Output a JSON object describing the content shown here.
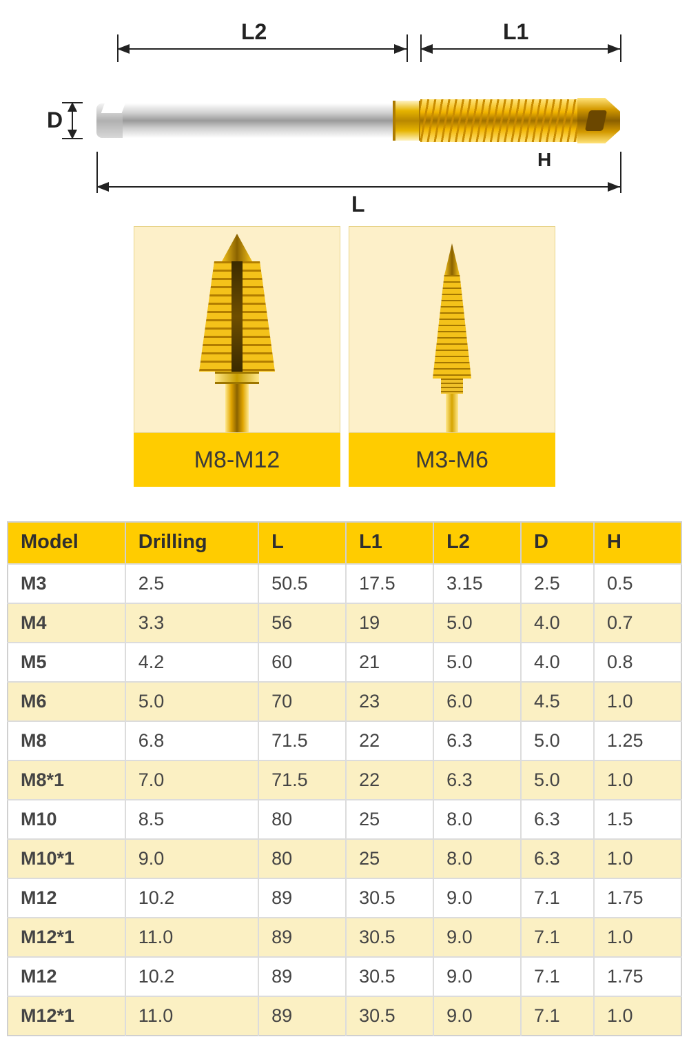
{
  "diagram": {
    "labels": {
      "L": "L",
      "L1": "L1",
      "L2": "L2",
      "D": "D",
      "H": "H"
    },
    "style": {
      "line_color": "#222222",
      "label_fontsize": 32,
      "shank_gradient": [
        "#fefefe",
        "#cfcfcf",
        "#9a9a9a",
        "#cfcfcf",
        "#fefefe"
      ],
      "coating_gold": [
        "#ffe37a",
        "#f2b500",
        "#a06f00"
      ]
    }
  },
  "photos": {
    "background_color": "#fdf0c9",
    "label_bg": "#ffcc00",
    "label_fontsize": 34,
    "items": [
      {
        "label": "M8-M12",
        "variant": "large"
      },
      {
        "label": "M3-M6",
        "variant": "small"
      }
    ]
  },
  "spec_table": {
    "header_bg": "#ffcc00",
    "zebra_bg": "#fbf0c3",
    "border_color": "#d0d0d0",
    "fontsize": 27,
    "columns": [
      "Model",
      "Drilling",
      "L",
      "L1",
      "L2",
      "D",
      "H"
    ],
    "rows": [
      [
        "M3",
        "2.5",
        "50.5",
        "17.5",
        "3.15",
        "2.5",
        "0.5"
      ],
      [
        "M4",
        "3.3",
        "56",
        "19",
        "5.0",
        "4.0",
        "0.7"
      ],
      [
        "M5",
        "4.2",
        "60",
        "21",
        "5.0",
        "4.0",
        "0.8"
      ],
      [
        "M6",
        "5.0",
        "70",
        "23",
        "6.0",
        "4.5",
        "1.0"
      ],
      [
        "M8",
        "6.8",
        "71.5",
        "22",
        "6.3",
        "5.0",
        "1.25"
      ],
      [
        "M8*1",
        "7.0",
        "71.5",
        "22",
        "6.3",
        "5.0",
        "1.0"
      ],
      [
        "M10",
        "8.5",
        "80",
        "25",
        "8.0",
        "6.3",
        "1.5"
      ],
      [
        "M10*1",
        "9.0",
        "80",
        "25",
        "8.0",
        "6.3",
        "1.0"
      ],
      [
        "M12",
        "10.2",
        "89",
        "30.5",
        "9.0",
        "7.1",
        "1.75"
      ],
      [
        "M12*1",
        "11.0",
        "89",
        "30.5",
        "9.0",
        "7.1",
        "1.0"
      ],
      [
        "M12",
        "10.2",
        "89",
        "30.5",
        "9.0",
        "7.1",
        "1.75"
      ],
      [
        "M12*1",
        "11.0",
        "89",
        "30.5",
        "9.0",
        "7.1",
        "1.0"
      ]
    ]
  }
}
